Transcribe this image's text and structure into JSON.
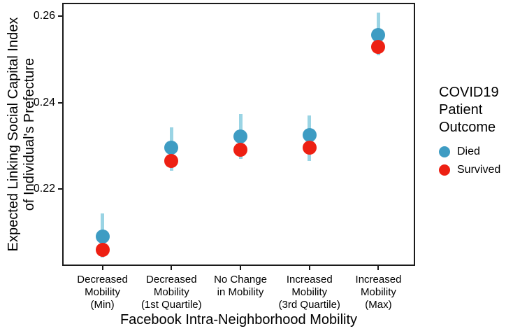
{
  "chart_data": {
    "type": "scatter",
    "title": "",
    "xlabel": "Facebook Intra-Neighborhood Mobility",
    "ylabel": "Expected Linking Social Capital Index of Individual's Prefecture",
    "ylabel_lines": [
      "Expected Linking Social Capital Index",
      "of Individual's Prefecture"
    ],
    "categories": [
      "Decreased Mobility (Min)",
      "Decreased Mobility (1st Quartile)",
      "No Change in Mobility",
      "Increased Mobility (3rd Quartile)",
      "Increased Mobility (Max)"
    ],
    "category_label_lines": [
      [
        "Decreased",
        "Mobility",
        "(Min)"
      ],
      [
        "Decreased",
        "Mobility",
        "(1st Quartile)"
      ],
      [
        "No Change",
        "in Mobility"
      ],
      [
        "Increased",
        "Mobility",
        "(3rd Quartile)"
      ],
      [
        "Increased",
        "Mobility",
        "(Max)"
      ]
    ],
    "series": [
      {
        "name": "Died",
        "color": "#3E9CC3",
        "values": [
          0.209,
          0.2295,
          0.2321,
          0.2325,
          0.2557
        ]
      },
      {
        "name": "Survived",
        "color": "#ED2013",
        "values": [
          0.206,
          0.2265,
          0.2291,
          0.2296,
          0.2529
        ]
      }
    ],
    "error_bars": {
      "color": "#9AD4E4",
      "low": [
        0.2041,
        0.2243,
        0.227,
        0.2265,
        0.2509
      ],
      "high": [
        0.2143,
        0.2342,
        0.2373,
        0.237,
        0.2608
      ]
    },
    "ytick_labels": [
      "0.22",
      "0.24",
      "0.26"
    ],
    "ytick_values": [
      0.22,
      0.24,
      0.26
    ],
    "ylim": [
      0.2022,
      0.2631
    ],
    "grid": false,
    "legend_position": "right"
  },
  "legend": {
    "title_lines": [
      "COVID19",
      "Patient",
      "Outcome"
    ],
    "items": [
      {
        "label": "Died",
        "color": "#3E9CC3"
      },
      {
        "label": "Survived",
        "color": "#ED2013"
      }
    ]
  }
}
